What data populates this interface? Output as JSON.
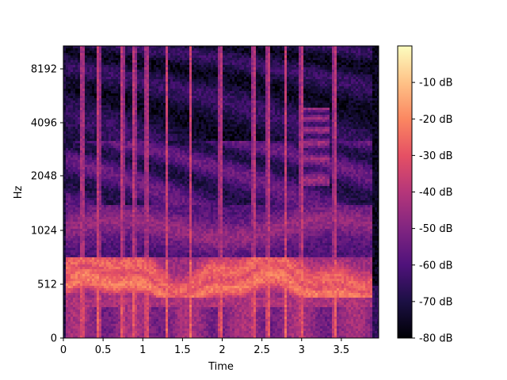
{
  "chart_data": {
    "type": "heatmap",
    "title": "",
    "xlabel": "Time",
    "ylabel": "Hz",
    "y_scale": "log",
    "colormap": "magma",
    "xlim": [
      0,
      3.97
    ],
    "x_ticks": [
      0,
      0.5,
      1,
      1.5,
      2,
      2.5,
      3,
      3.5
    ],
    "x_tick_labels": [
      "0",
      "0.5",
      "1",
      "1.5",
      "2",
      "2.5",
      "3",
      "3.5"
    ],
    "y_ticks": [
      0,
      512,
      1024,
      2048,
      4096,
      8192
    ],
    "y_tick_labels": [
      "0",
      "512",
      "1024",
      "2048",
      "4096",
      "8192"
    ],
    "colorbar": {
      "range_db": [
        -80,
        0
      ],
      "ticks": [
        -80,
        -70,
        -60,
        -50,
        -40,
        -30,
        -20,
        -10
      ],
      "tick_labels": [
        "-80 dB",
        "-70 dB",
        "-60 dB",
        "-50 dB",
        "-40 dB",
        "-30 dB",
        "-20 dB",
        "-10 dB"
      ]
    },
    "bands": [
      {
        "hz_low": 380,
        "hz_high": 720,
        "level_db": -28
      },
      {
        "hz_low": 0,
        "hz_high": 300,
        "level_db": -45
      },
      {
        "hz_low": 900,
        "hz_high": 1300,
        "level_db": -52
      },
      {
        "hz_low": 1500,
        "hz_high": 3000,
        "level_db": -58
      },
      {
        "hz_low": 3000,
        "hz_high": 11025,
        "level_db": -68
      }
    ],
    "onsets_s": [
      0.24,
      0.44,
      0.74,
      0.89,
      1.05,
      1.3,
      1.6,
      1.98,
      2.4,
      2.58,
      2.8,
      3.0,
      3.42
    ]
  },
  "colors": {
    "c0": "#000004",
    "c1": "#1c1044",
    "c2": "#4f127b",
    "c3": "#812581",
    "c4": "#b5367a",
    "c5": "#e55064",
    "c6": "#fb8761",
    "c7": "#fec287",
    "c8": "#fcfdbf"
  }
}
